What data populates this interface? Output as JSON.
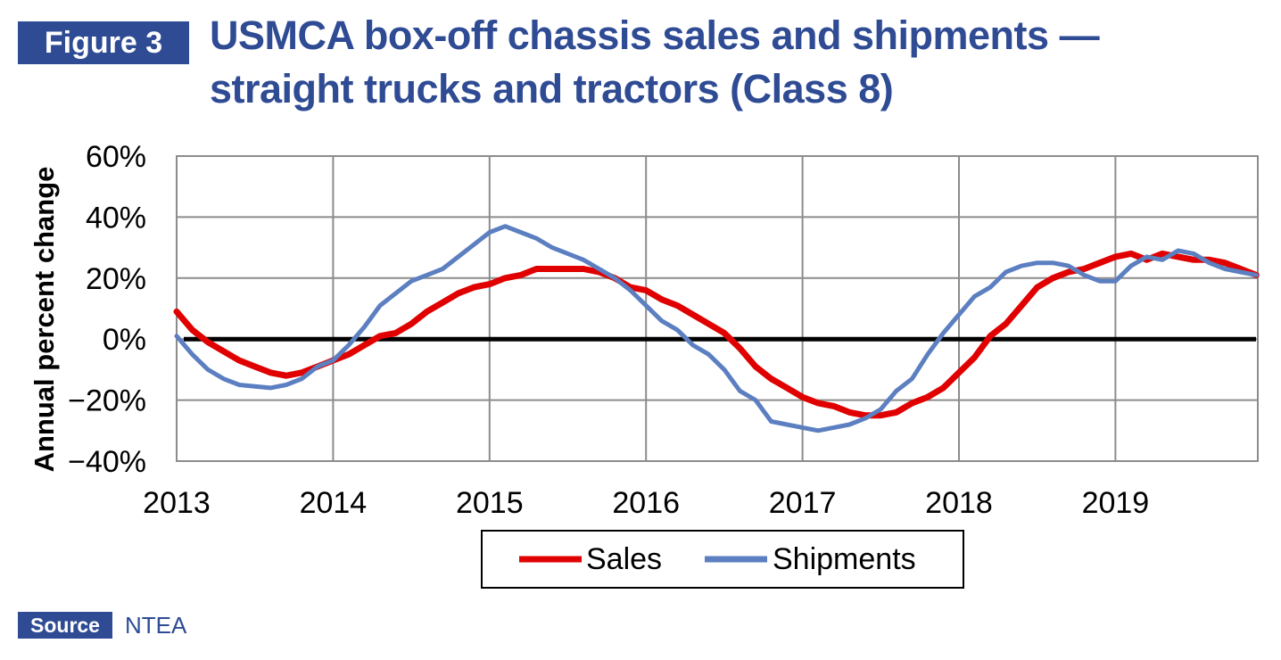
{
  "figure_label": "Figure 3",
  "title_line1": "USMCA box-off chassis sales and shipments —",
  "title_line2": "straight trucks and tractors (Class 8)",
  "source_label": "Source",
  "source_text": "NTEA",
  "colors": {
    "brand": "#2e4b94",
    "sales": "#e00000",
    "shipments": "#5b7fc0"
  },
  "chart_data": {
    "type": "line",
    "title": "USMCA box-off chassis sales and shipments — straight trucks and tractors (Class 8)",
    "xlabel": "",
    "ylabel": "Annual percent change",
    "xlim": [
      2013,
      2019.9
    ],
    "ylim": [
      -40,
      60
    ],
    "x_ticks": [
      2013,
      2014,
      2015,
      2016,
      2017,
      2018,
      2019
    ],
    "y_ticks": [
      -40,
      -20,
      0,
      20,
      40,
      60
    ],
    "y_tick_labels": [
      "−40%",
      "−20%",
      "0%",
      "20%",
      "40%",
      "60%"
    ],
    "grid": true,
    "zero_line": true,
    "legend_position": "bottom-center",
    "series": [
      {
        "name": "Sales",
        "color": "#e00000",
        "points": [
          [
            2013.0,
            9
          ],
          [
            2013.1,
            3
          ],
          [
            2013.2,
            -1
          ],
          [
            2013.3,
            -4
          ],
          [
            2013.4,
            -7
          ],
          [
            2013.5,
            -9
          ],
          [
            2013.6,
            -11
          ],
          [
            2013.7,
            -12
          ],
          [
            2013.8,
            -11
          ],
          [
            2013.9,
            -9
          ],
          [
            2014.0,
            -7
          ],
          [
            2014.1,
            -5
          ],
          [
            2014.2,
            -2
          ],
          [
            2014.3,
            1
          ],
          [
            2014.4,
            2
          ],
          [
            2014.5,
            5
          ],
          [
            2014.6,
            9
          ],
          [
            2014.7,
            12
          ],
          [
            2014.8,
            15
          ],
          [
            2014.9,
            17
          ],
          [
            2015.0,
            18
          ],
          [
            2015.1,
            20
          ],
          [
            2015.2,
            21
          ],
          [
            2015.3,
            23
          ],
          [
            2015.4,
            23
          ],
          [
            2015.5,
            23
          ],
          [
            2015.6,
            23
          ],
          [
            2015.7,
            22
          ],
          [
            2015.8,
            20
          ],
          [
            2015.9,
            17
          ],
          [
            2016.0,
            16
          ],
          [
            2016.1,
            13
          ],
          [
            2016.2,
            11
          ],
          [
            2016.3,
            8
          ],
          [
            2016.4,
            5
          ],
          [
            2016.5,
            2
          ],
          [
            2016.6,
            -3
          ],
          [
            2016.7,
            -9
          ],
          [
            2016.8,
            -13
          ],
          [
            2016.9,
            -16
          ],
          [
            2017.0,
            -19
          ],
          [
            2017.1,
            -21
          ],
          [
            2017.2,
            -22
          ],
          [
            2017.3,
            -24
          ],
          [
            2017.4,
            -25
          ],
          [
            2017.5,
            -25
          ],
          [
            2017.6,
            -24
          ],
          [
            2017.7,
            -21
          ],
          [
            2017.8,
            -19
          ],
          [
            2017.9,
            -16
          ],
          [
            2018.0,
            -11
          ],
          [
            2018.1,
            -6
          ],
          [
            2018.2,
            1
          ],
          [
            2018.3,
            5
          ],
          [
            2018.4,
            11
          ],
          [
            2018.5,
            17
          ],
          [
            2018.6,
            20
          ],
          [
            2018.7,
            22
          ],
          [
            2018.8,
            23
          ],
          [
            2018.9,
            25
          ],
          [
            2019.0,
            27
          ],
          [
            2019.1,
            28
          ],
          [
            2019.2,
            26
          ],
          [
            2019.3,
            28
          ],
          [
            2019.4,
            27
          ],
          [
            2019.5,
            26
          ],
          [
            2019.6,
            26
          ],
          [
            2019.7,
            25
          ],
          [
            2019.8,
            23
          ],
          [
            2019.9,
            21
          ]
        ]
      },
      {
        "name": "Shipments",
        "color": "#5b7fc0",
        "points": [
          [
            2013.0,
            1
          ],
          [
            2013.1,
            -5
          ],
          [
            2013.2,
            -10
          ],
          [
            2013.3,
            -13
          ],
          [
            2013.4,
            -15
          ],
          [
            2013.5,
            -15.5
          ],
          [
            2013.6,
            -16
          ],
          [
            2013.7,
            -15
          ],
          [
            2013.8,
            -13
          ],
          [
            2013.9,
            -9
          ],
          [
            2014.0,
            -7
          ],
          [
            2014.1,
            -2
          ],
          [
            2014.2,
            4
          ],
          [
            2014.3,
            11
          ],
          [
            2014.4,
            15
          ],
          [
            2014.5,
            19
          ],
          [
            2014.6,
            21
          ],
          [
            2014.7,
            23
          ],
          [
            2014.8,
            27
          ],
          [
            2014.9,
            31
          ],
          [
            2015.0,
            35
          ],
          [
            2015.1,
            37
          ],
          [
            2015.2,
            35
          ],
          [
            2015.3,
            33
          ],
          [
            2015.4,
            30
          ],
          [
            2015.5,
            28
          ],
          [
            2015.6,
            26
          ],
          [
            2015.7,
            23
          ],
          [
            2015.8,
            20
          ],
          [
            2015.9,
            16
          ],
          [
            2016.0,
            11
          ],
          [
            2016.1,
            6
          ],
          [
            2016.2,
            3
          ],
          [
            2016.3,
            -2
          ],
          [
            2016.4,
            -5
          ],
          [
            2016.5,
            -10
          ],
          [
            2016.6,
            -17
          ],
          [
            2016.7,
            -20
          ],
          [
            2016.8,
            -27
          ],
          [
            2016.9,
            -28
          ],
          [
            2017.0,
            -29
          ],
          [
            2017.1,
            -30
          ],
          [
            2017.2,
            -29
          ],
          [
            2017.3,
            -28
          ],
          [
            2017.4,
            -26
          ],
          [
            2017.5,
            -23
          ],
          [
            2017.6,
            -17
          ],
          [
            2017.7,
            -13
          ],
          [
            2017.8,
            -5
          ],
          [
            2017.9,
            2
          ],
          [
            2018.0,
            8
          ],
          [
            2018.1,
            14
          ],
          [
            2018.2,
            17
          ],
          [
            2018.3,
            22
          ],
          [
            2018.4,
            24
          ],
          [
            2018.5,
            25
          ],
          [
            2018.6,
            25
          ],
          [
            2018.7,
            24
          ],
          [
            2018.8,
            21
          ],
          [
            2018.9,
            19
          ],
          [
            2019.0,
            19
          ],
          [
            2019.1,
            24
          ],
          [
            2019.2,
            27
          ],
          [
            2019.3,
            26
          ],
          [
            2019.4,
            29
          ],
          [
            2019.5,
            28
          ],
          [
            2019.6,
            25
          ],
          [
            2019.7,
            23
          ],
          [
            2019.8,
            22
          ],
          [
            2019.9,
            21
          ]
        ]
      }
    ]
  }
}
